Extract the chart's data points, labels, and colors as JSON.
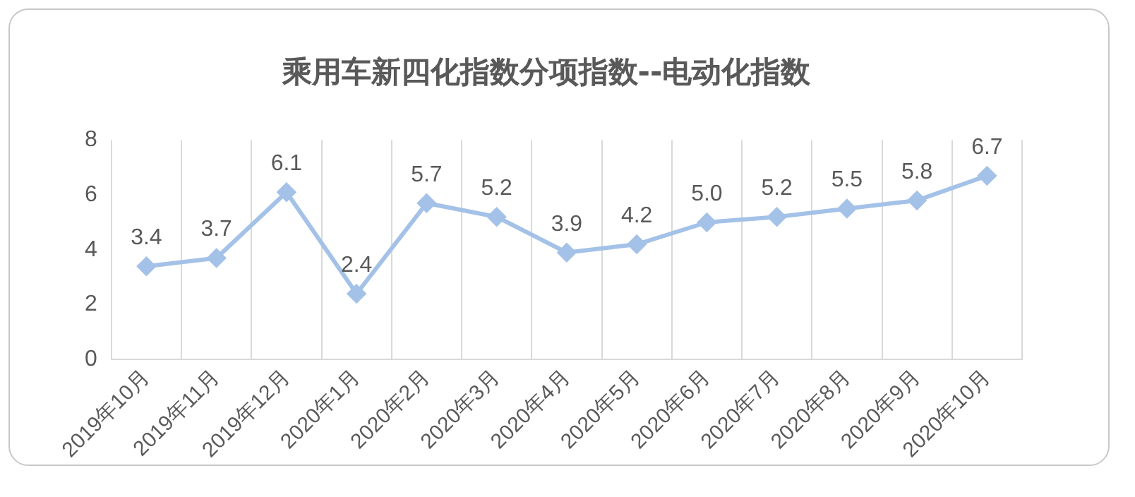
{
  "chart_data": {
    "type": "line",
    "title": "乘用车新四化指数分项指数--电动化指数",
    "categories": [
      "2019年10月",
      "2019年11月",
      "2019年12月",
      "2020年1月",
      "2020年2月",
      "2020年3月",
      "2020年4月",
      "2020年5月",
      "2020年6月",
      "2020年7月",
      "2020年8月",
      "2020年9月",
      "2020年10月"
    ],
    "series": [
      {
        "color": "#a4c2e8",
        "values": [
          3.4,
          3.7,
          6.1,
          2.4,
          5.7,
          5.2,
          3.9,
          4.2,
          5.0,
          5.2,
          5.5,
          5.8,
          6.7
        ],
        "value_labels": [
          "3.4",
          "3.7",
          "6.1",
          "2.4",
          "5.7",
          "5.2",
          "3.9",
          "4.2",
          "5.0",
          "5.2",
          "5.5",
          "5.8",
          "6.7"
        ]
      }
    ],
    "ylim": [
      0,
      8
    ],
    "yticks": [
      0,
      2,
      4,
      6,
      8
    ],
    "grid": "x",
    "marker": "diamond",
    "legend": false
  }
}
